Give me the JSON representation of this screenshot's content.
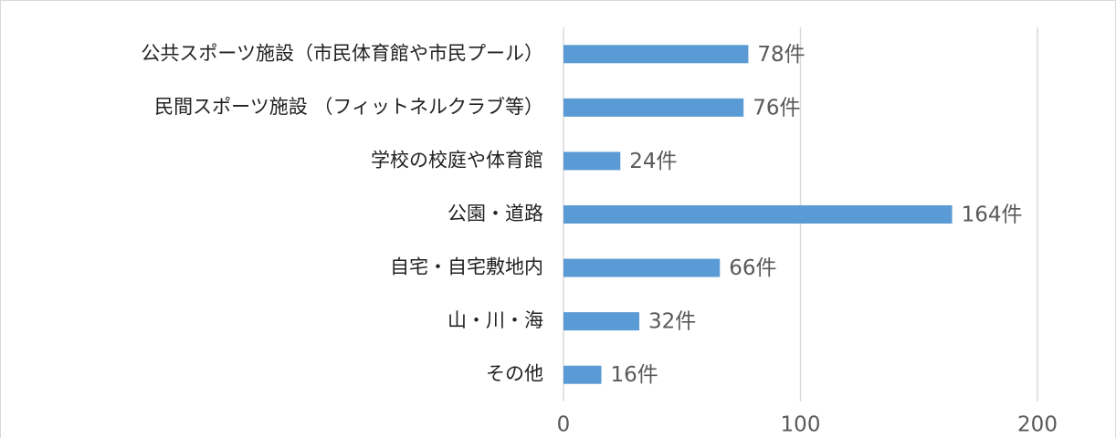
{
  "chart_data": {
    "type": "bar",
    "orientation": "horizontal",
    "categories": [
      "公共スポーツ施設（市民体育館や市民プール）",
      "民間スポーツ施設 （フィットネルクラブ等）",
      "学校の校庭や体育館",
      "公園・道路",
      "自宅・自宅敷地内",
      "山・川・海",
      "その他"
    ],
    "values": [
      78,
      76,
      24,
      164,
      66,
      32,
      16
    ],
    "value_labels": [
      "78件",
      "76件",
      "24件",
      "164件",
      "66件",
      "32件",
      "16件"
    ],
    "color": "#5b9bd5",
    "xlim": [
      0,
      200
    ],
    "xticks": [
      0,
      100,
      200
    ],
    "grid": true
  }
}
